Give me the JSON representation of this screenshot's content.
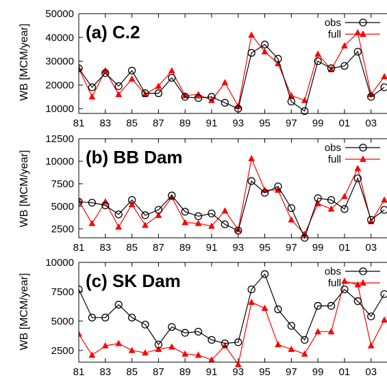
{
  "chart_data": [
    {
      "type": "line",
      "title": "(a) C.2",
      "ylabel": "WB [MCM/year]",
      "ylim": [
        8000,
        50000
      ],
      "yticks": [
        10000,
        20000,
        30000,
        40000,
        50000
      ],
      "xlim": [
        81,
        104.2
      ],
      "xticks": [
        "81",
        "83",
        "85",
        "87",
        "89",
        "91",
        "93",
        "95",
        "97",
        "99",
        "01",
        "03"
      ],
      "legend_position": "top-right",
      "x": [
        81,
        82,
        83,
        84,
        85,
        86,
        87,
        88,
        89,
        90,
        91,
        92,
        93,
        94,
        95,
        96,
        97,
        98,
        99,
        100,
        101,
        102,
        103,
        104
      ],
      "series": [
        {
          "name": "obs",
          "color": "#000000",
          "marker": "circle",
          "values": [
            27000,
            19000,
            25000,
            19500,
            26000,
            16500,
            16500,
            23000,
            15000,
            14500,
            15000,
            12500,
            10000,
            33500,
            37000,
            31000,
            13000,
            9000,
            30000,
            27000,
            28000,
            34000,
            15000,
            19000
          ]
        },
        {
          "name": "full",
          "color": "#ff0000",
          "marker": "triangle",
          "values": [
            27000,
            15000,
            26000,
            16000,
            22500,
            16000,
            19500,
            26000,
            15500,
            16000,
            13500,
            21000,
            11000,
            41000,
            34000,
            29000,
            15500,
            13500,
            33000,
            26500,
            36500,
            42000,
            16000,
            23500
          ]
        }
      ]
    },
    {
      "type": "line",
      "title": "(b) BB Dam",
      "ylabel": "WB [MCM/year]",
      "ylim": [
        1500,
        12500
      ],
      "yticks": [
        2500,
        5000,
        7500,
        10000,
        12500
      ],
      "xlim": [
        81,
        104.2
      ],
      "xticks": [
        "81",
        "83",
        "85",
        "87",
        "89",
        "91",
        "93",
        "95",
        "97",
        "99",
        "01",
        "03"
      ],
      "legend_position": "top-right",
      "x": [
        81,
        82,
        83,
        84,
        85,
        86,
        87,
        88,
        89,
        90,
        91,
        92,
        93,
        94,
        95,
        96,
        97,
        98,
        99,
        100,
        101,
        102,
        103,
        104
      ],
      "series": [
        {
          "name": "obs",
          "color": "#000000",
          "marker": "circle",
          "values": [
            5500,
            5400,
            5100,
            4100,
            5700,
            4000,
            4600,
            6200,
            4400,
            3900,
            4200,
            3000,
            2300,
            7800,
            6500,
            7200,
            4800,
            1500,
            5900,
            5700,
            4700,
            8100,
            3500,
            4600
          ]
        },
        {
          "name": "full",
          "color": "#ff0000",
          "marker": "triangle",
          "values": [
            5600,
            3100,
            5500,
            2700,
            5200,
            2900,
            4000,
            6000,
            3200,
            3100,
            2800,
            4500,
            2400,
            10300,
            6800,
            6800,
            3500,
            1900,
            5300,
            4700,
            6100,
            9200,
            3300,
            5700
          ]
        }
      ]
    },
    {
      "type": "line",
      "title": "(c) SK Dam",
      "ylabel": "WB [MCM/year]",
      "ylim": [
        1500,
        10000
      ],
      "yticks": [
        2500,
        5000,
        7500,
        10000
      ],
      "xlim": [
        81,
        104.2
      ],
      "xticks": [
        "81",
        "83",
        "85",
        "87",
        "89",
        "91",
        "93",
        "95",
        "97",
        "99",
        "01",
        "03"
      ],
      "legend_position": "top-right",
      "x": [
        81,
        82,
        83,
        84,
        85,
        86,
        87,
        88,
        89,
        90,
        91,
        92,
        93,
        94,
        95,
        96,
        97,
        98,
        99,
        100,
        101,
        102,
        103,
        104
      ],
      "series": [
        {
          "name": "obs",
          "color": "#000000",
          "marker": "circle",
          "values": [
            7700,
            5300,
            5300,
            6400,
            5300,
            4700,
            3000,
            4500,
            4000,
            4100,
            3400,
            3100,
            3200,
            7700,
            9000,
            6000,
            4600,
            3400,
            6300,
            6300,
            7700,
            6700,
            5400,
            7300
          ]
        },
        {
          "name": "full",
          "color": "#ff0000",
          "marker": "triangle",
          "values": [
            3900,
            2100,
            2900,
            3100,
            2500,
            2300,
            2600,
            2800,
            2200,
            2100,
            1700,
            2900,
            1300,
            6600,
            6100,
            3000,
            2600,
            2200,
            4100,
            4100,
            8400,
            8100,
            2900,
            5100
          ]
        }
      ]
    }
  ]
}
